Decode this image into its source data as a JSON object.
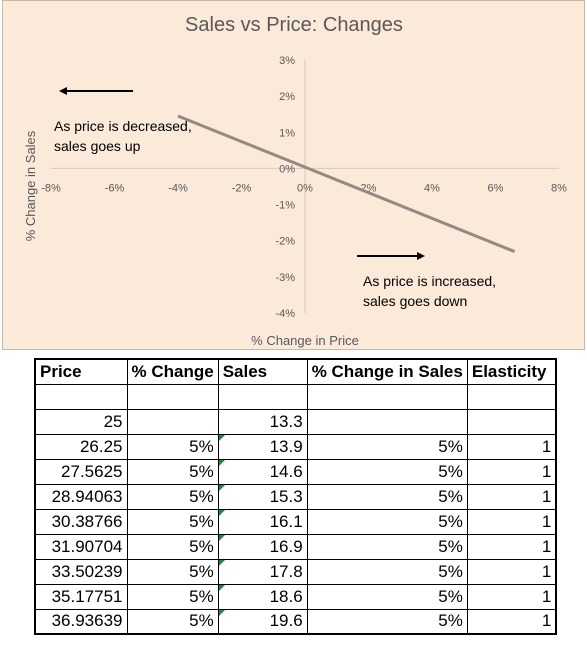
{
  "chart_data": {
    "type": "line",
    "title": "Sales vs Price: Changes",
    "xlabel": "% Change in Price",
    "ylabel": "% Change in Sales",
    "xlim": [
      -8,
      8
    ],
    "ylim": [
      -4,
      3
    ],
    "x_ticks": [
      "-8%",
      "-6%",
      "-4%",
      "-2%",
      "0%",
      "2%",
      "4%",
      "6%",
      "8%"
    ],
    "y_ticks": [
      "-4%",
      "-3%",
      "-2%",
      "-1%",
      "0%",
      "1%",
      "2%",
      "3%"
    ],
    "grid": false,
    "legend": "none",
    "line_color": "#948a84",
    "series": [
      {
        "x": [
          -4,
          6.6
        ],
        "y": [
          1.45,
          -2.3
        ]
      }
    ],
    "annotations": [
      {
        "lines": [
          "As price is decreased,",
          "sales goes up"
        ],
        "arrow": "left"
      },
      {
        "lines": [
          "As price is increased,",
          "sales goes down"
        ],
        "arrow": "right"
      }
    ]
  },
  "table": {
    "headers": [
      "Price",
      "% Change",
      "Sales",
      "% Change in Sales",
      "Elasticity"
    ],
    "rows": [
      [
        "",
        "",
        "",
        "",
        ""
      ],
      [
        "25",
        "",
        "13.3",
        "",
        ""
      ],
      [
        "26.25",
        "5%",
        "13.9",
        "5%",
        "1"
      ],
      [
        "27.5625",
        "5%",
        "14.6",
        "5%",
        "1"
      ],
      [
        "28.94063",
        "5%",
        "15.3",
        "5%",
        "1"
      ],
      [
        "30.38766",
        "5%",
        "16.1",
        "5%",
        "1"
      ],
      [
        "31.90704",
        "5%",
        "16.9",
        "5%",
        "1"
      ],
      [
        "33.50239",
        "5%",
        "17.8",
        "5%",
        "1"
      ],
      [
        "35.17751",
        "5%",
        "18.6",
        "5%",
        "1"
      ],
      [
        "36.93639",
        "5%",
        "19.6",
        "5%",
        "1"
      ]
    ],
    "marker_color": "#1f8a3c"
  }
}
